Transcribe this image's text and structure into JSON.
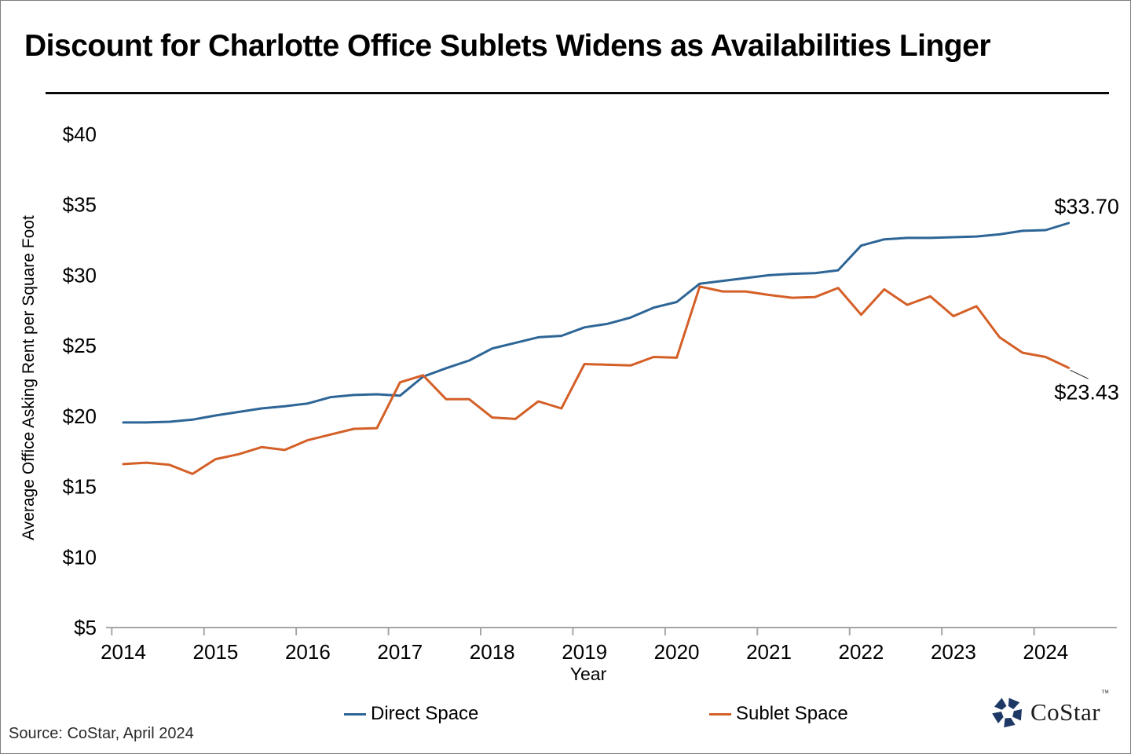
{
  "page": {
    "title": "Discount for Charlotte Office Sublets Widens as Availabilities Linger",
    "source_note": "Source: CoStar, April 2024",
    "logo_text": "CoStar",
    "logo_tm": "™"
  },
  "chart_data": {
    "type": "line",
    "title": "Discount for Charlotte Office Sublets Widens as Availabilities Linger",
    "xlabel": "Year",
    "ylabel": "Average Office Asking Rent per Square Foot",
    "frequency": "quarterly",
    "x_start_label": "2014 Q1",
    "x_end_label": "2024 Q2",
    "x_tick_labels": [
      "2014",
      "2015",
      "2016",
      "2017",
      "2018",
      "2019",
      "2020",
      "2021",
      "2022",
      "2023",
      "2024"
    ],
    "y_ticks": [
      5,
      10,
      15,
      20,
      25,
      30,
      35,
      40
    ],
    "y_tick_labels": [
      "$5",
      "$10",
      "$15",
      "$20",
      "$25",
      "$30",
      "$35",
      "$40"
    ],
    "ylim": [
      5,
      40
    ],
    "grid": false,
    "legend_position": "bottom",
    "axis_color": "#a6a6a6",
    "series": [
      {
        "name": "Direct Space",
        "color": "#2d6596",
        "end_label": "$33.70",
        "end_label_position": "above",
        "values": [
          19.55,
          19.55,
          19.6,
          19.75,
          20.05,
          20.3,
          20.55,
          20.7,
          20.9,
          21.35,
          21.5,
          21.55,
          21.45,
          22.8,
          23.4,
          23.95,
          24.8,
          25.2,
          25.6,
          25.7,
          26.3,
          26.55,
          27.0,
          27.7,
          28.1,
          29.4,
          29.6,
          29.8,
          30.0,
          30.1,
          30.15,
          30.35,
          32.1,
          32.55,
          32.65,
          32.65,
          32.7,
          32.75,
          32.9,
          33.15,
          33.2,
          33.7
        ]
      },
      {
        "name": "Sublet Space",
        "color": "#d45f27",
        "end_label": "$23.43",
        "end_label_position": "below",
        "values": [
          16.6,
          16.7,
          16.55,
          15.9,
          16.95,
          17.3,
          17.8,
          17.6,
          18.3,
          18.7,
          19.1,
          19.15,
          22.4,
          22.9,
          21.2,
          21.2,
          19.9,
          19.8,
          21.05,
          20.55,
          23.7,
          23.65,
          23.6,
          24.2,
          24.15,
          29.2,
          28.85,
          28.85,
          28.6,
          28.4,
          28.45,
          29.1,
          27.2,
          29.0,
          27.9,
          28.5,
          27.1,
          27.8,
          25.6,
          24.5,
          24.2,
          23.43
        ]
      }
    ]
  }
}
